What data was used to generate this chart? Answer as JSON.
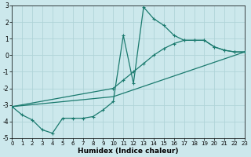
{
  "xlabel": "Humidex (Indice chaleur)",
  "xlim": [
    0,
    23
  ],
  "ylim": [
    -5,
    3
  ],
  "yticks": [
    -5,
    -4,
    -3,
    -2,
    -1,
    0,
    1,
    2,
    3
  ],
  "xticks": [
    0,
    1,
    2,
    3,
    4,
    5,
    6,
    7,
    8,
    9,
    10,
    11,
    12,
    13,
    14,
    15,
    16,
    17,
    18,
    19,
    20,
    21,
    22,
    23
  ],
  "background_color": "#cce8ec",
  "grid_color": "#b0d4d8",
  "line_color": "#1a7a6e",
  "line1_x": [
    0,
    1,
    2,
    3,
    4,
    5,
    6,
    7,
    8,
    9,
    10,
    11,
    12,
    13,
    14,
    15,
    16,
    17,
    18,
    19,
    20,
    21,
    22,
    23
  ],
  "line1_y": [
    -3.1,
    -3.6,
    -3.9,
    -4.5,
    -4.7,
    -3.8,
    -3.8,
    -3.8,
    -3.7,
    -3.3,
    -2.8,
    1.2,
    -1.7,
    2.9,
    2.2,
    1.8,
    1.2,
    0.9,
    0.9,
    0.9,
    0.5,
    0.3,
    0.2,
    0.2
  ],
  "line2_x": [
    0,
    10,
    11,
    12,
    13,
    14,
    15,
    16,
    17,
    18,
    19,
    20,
    21,
    22,
    23
  ],
  "line2_y": [
    -3.1,
    -2.0,
    -1.5,
    -1.0,
    -0.5,
    0.0,
    0.4,
    0.7,
    0.9,
    0.9,
    0.9,
    0.5,
    0.3,
    0.2,
    0.2
  ],
  "line3_x": [
    0,
    10,
    23
  ],
  "line3_y": [
    -3.1,
    -2.5,
    0.2
  ]
}
